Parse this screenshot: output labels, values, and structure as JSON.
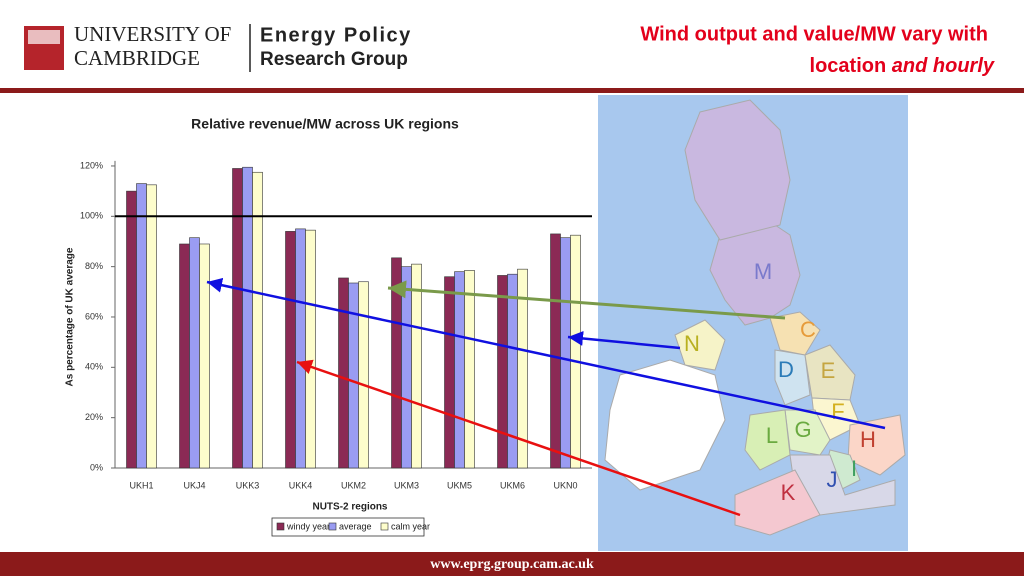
{
  "header": {
    "university_line1": "UNIVERSITY OF",
    "university_line2": "CAMBRIDGE",
    "group_line1": "Energy Policy",
    "group_line2": "Research Group",
    "title_line1": "Wind output and value/MW vary with",
    "title_line2": "location",
    "title_line2_italic": "and hourly"
  },
  "chart_data": {
    "type": "bar",
    "title": "Relative revenue/MW across UK regions",
    "x_label": "NUTS-2 regions",
    "y_label": "As percentage of UK average",
    "categories": [
      "UKH1",
      "UKJ4",
      "UKK3",
      "UKK4",
      "UKM2",
      "UKM3",
      "UKM5",
      "UKM6",
      "UKN0"
    ],
    "series": [
      {
        "name": "windy year",
        "color": "#8b2a55",
        "values": [
          110,
          89,
          119,
          94,
          75.5,
          83.5,
          76,
          76.5,
          93
        ]
      },
      {
        "name": "average",
        "color": "#9a9cf2",
        "values": [
          113,
          91.5,
          119.5,
          95,
          73.5,
          80,
          78,
          77,
          91.5
        ]
      },
      {
        "name": "calm year",
        "color": "#fdfdcc",
        "values": [
          112.5,
          89,
          117.5,
          94.5,
          74,
          81,
          78.5,
          79,
          92.5
        ]
      }
    ],
    "ylim": [
      0,
      122
    ],
    "yticks": [
      {
        "value": 0,
        "label": "0%"
      },
      {
        "value": 20,
        "label": "20%"
      },
      {
        "value": 40,
        "label": "40%"
      },
      {
        "value": 60,
        "label": "60%"
      },
      {
        "value": 80,
        "label": "80%"
      },
      {
        "value": 100,
        "label": "100%"
      },
      {
        "value": 120,
        "label": "120%"
      }
    ],
    "reference_line": 100,
    "legend": "bottom"
  },
  "map": {
    "labels": [
      "M",
      "C",
      "D",
      "E",
      "N",
      "F",
      "G",
      "L",
      "H",
      "I",
      "J",
      "K"
    ]
  },
  "footer": "www.eprg.group.cam.ac.uk"
}
